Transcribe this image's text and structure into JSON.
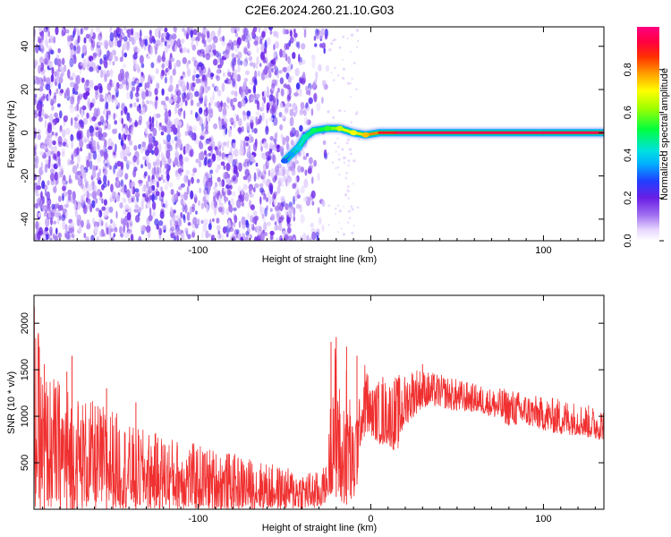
{
  "figure": {
    "title": "C2E6.2024.260.21.10.G03",
    "accent_color": "#f03030"
  },
  "chart_data": [
    {
      "type": "heatmap",
      "title": "C2E6.2024.260.21.10.G03",
      "xlabel": "Height of straight line (km)",
      "ylabel": "Frequency (Hz)",
      "xlim": [
        -195,
        135
      ],
      "ylim": [
        -50,
        49
      ],
      "xticks": [
        -100,
        0,
        100
      ],
      "yticks": [
        -40,
        -20,
        0,
        20,
        40
      ],
      "colorbar": {
        "label": "Normalized spectral amplitude",
        "range": [
          0,
          1
        ],
        "ticks": [
          0.0,
          0.2,
          0.4,
          0.6,
          0.8
        ],
        "colormap": "rainbow (white at 0, purple, blue, cyan, green, yellow, orange, red, magenta at 1)"
      },
      "noise_region": {
        "x_range": [
          -195,
          -25
        ],
        "frequency_range": [
          -50,
          49
        ],
        "typical_amplitude": [
          0.05,
          0.25
        ],
        "color": "#7a2ef2"
      },
      "signal_track": [
        {
          "x": -50,
          "f": -13,
          "amplitude": 0.3
        },
        {
          "x": -46,
          "f": -10,
          "amplitude": 0.35
        },
        {
          "x": -42,
          "f": -7,
          "amplitude": 0.4
        },
        {
          "x": -38,
          "f": -2,
          "amplitude": 0.45
        },
        {
          "x": -33,
          "f": 1,
          "amplitude": 0.5
        },
        {
          "x": -25,
          "f": 2,
          "amplitude": 0.55
        },
        {
          "x": -18,
          "f": 2,
          "amplitude": 0.65
        },
        {
          "x": -10,
          "f": 0,
          "amplitude": 0.7
        },
        {
          "x": -3,
          "f": -1,
          "amplitude": 0.75
        },
        {
          "x": 5,
          "f": 0,
          "amplitude": 0.85
        },
        {
          "x": 15,
          "f": 0,
          "amplitude": 0.95
        },
        {
          "x": 60,
          "f": 0,
          "amplitude": 0.95
        },
        {
          "x": 100,
          "f": 0,
          "amplitude": 0.95
        },
        {
          "x": 135,
          "f": 0,
          "amplitude": 0.95
        }
      ]
    },
    {
      "type": "line",
      "xlabel": "Height of straight line (km)",
      "ylabel": "SNR (10 * v/v)",
      "xlim": [
        -195,
        135
      ],
      "ylim": [
        0,
        2300
      ],
      "xticks": [
        -100,
        0,
        100
      ],
      "yticks": [
        500,
        1000,
        1500,
        2000
      ],
      "grid": false,
      "line_color": "#f03030",
      "series": [
        {
          "x": [
            -195,
            -190,
            -180,
            -170,
            -160,
            -150,
            -140,
            -130,
            -120,
            -110,
            -100,
            -90,
            -80,
            -70,
            -60,
            -50,
            -40,
            -30,
            -25,
            -20,
            -18,
            -15,
            -13,
            -10,
            -5,
            0,
            5,
            10,
            20,
            30,
            40,
            50,
            60,
            70,
            80,
            90,
            100,
            110,
            120,
            130,
            135
          ],
          "y": [
            1200,
            700,
            600,
            550,
            500,
            470,
            450,
            420,
            400,
            380,
            360,
            330,
            300,
            270,
            250,
            230,
            220,
            200,
            250,
            1000,
            400,
            150,
            900,
            100,
            900,
            1000,
            1050,
            1100,
            1200,
            1300,
            1300,
            1250,
            1200,
            1180,
            1150,
            1120,
            1100,
            1080,
            1050,
            1000,
            950
          ],
          "noise_band": [
            [
              -195,
              0,
              2300
            ],
            [
              -190,
              0,
              1500
            ],
            [
              -180,
              0,
              1400
            ],
            [
              -170,
              0,
              1250
            ],
            [
              -160,
              0,
              1150
            ],
            [
              -150,
              0,
              1100
            ],
            [
              -140,
              0,
              900
            ],
            [
              -130,
              0,
              850
            ],
            [
              -120,
              0,
              800
            ],
            [
              -110,
              0,
              750
            ],
            [
              -100,
              0,
              700
            ],
            [
              -90,
              0,
              650
            ],
            [
              -80,
              0,
              600
            ],
            [
              -70,
              0,
              550
            ],
            [
              -60,
              0,
              500
            ],
            [
              -50,
              0,
              450
            ],
            [
              -40,
              0,
              420
            ],
            [
              -30,
              0,
              400
            ],
            [
              -25,
              100,
              500
            ],
            [
              -22,
              200,
              1800
            ],
            [
              -19,
              100,
              1800
            ],
            [
              -17,
              50,
              800
            ],
            [
              -15,
              50,
              1500
            ],
            [
              -13,
              50,
              1700
            ],
            [
              -11,
              50,
              900
            ],
            [
              -9,
              50,
              1200
            ],
            [
              -6,
              700,
              1200
            ],
            [
              -3,
              800,
              1650
            ],
            [
              0,
              800,
              1300
            ],
            [
              5,
              700,
              1400
            ],
            [
              10,
              700,
              1400
            ],
            [
              15,
              600,
              1450
            ],
            [
              20,
              900,
              1450
            ],
            [
              25,
              1000,
              1550
            ],
            [
              30,
              1100,
              1500
            ],
            [
              40,
              1100,
              1450
            ],
            [
              50,
              1050,
              1400
            ],
            [
              60,
              1050,
              1350
            ],
            [
              70,
              1000,
              1300
            ],
            [
              80,
              900,
              1300
            ],
            [
              90,
              900,
              1250
            ],
            [
              100,
              850,
              1200
            ],
            [
              110,
              800,
              1200
            ],
            [
              120,
              800,
              1150
            ],
            [
              130,
              750,
              1100
            ],
            [
              135,
              750,
              1100
            ]
          ]
        }
      ]
    }
  ]
}
